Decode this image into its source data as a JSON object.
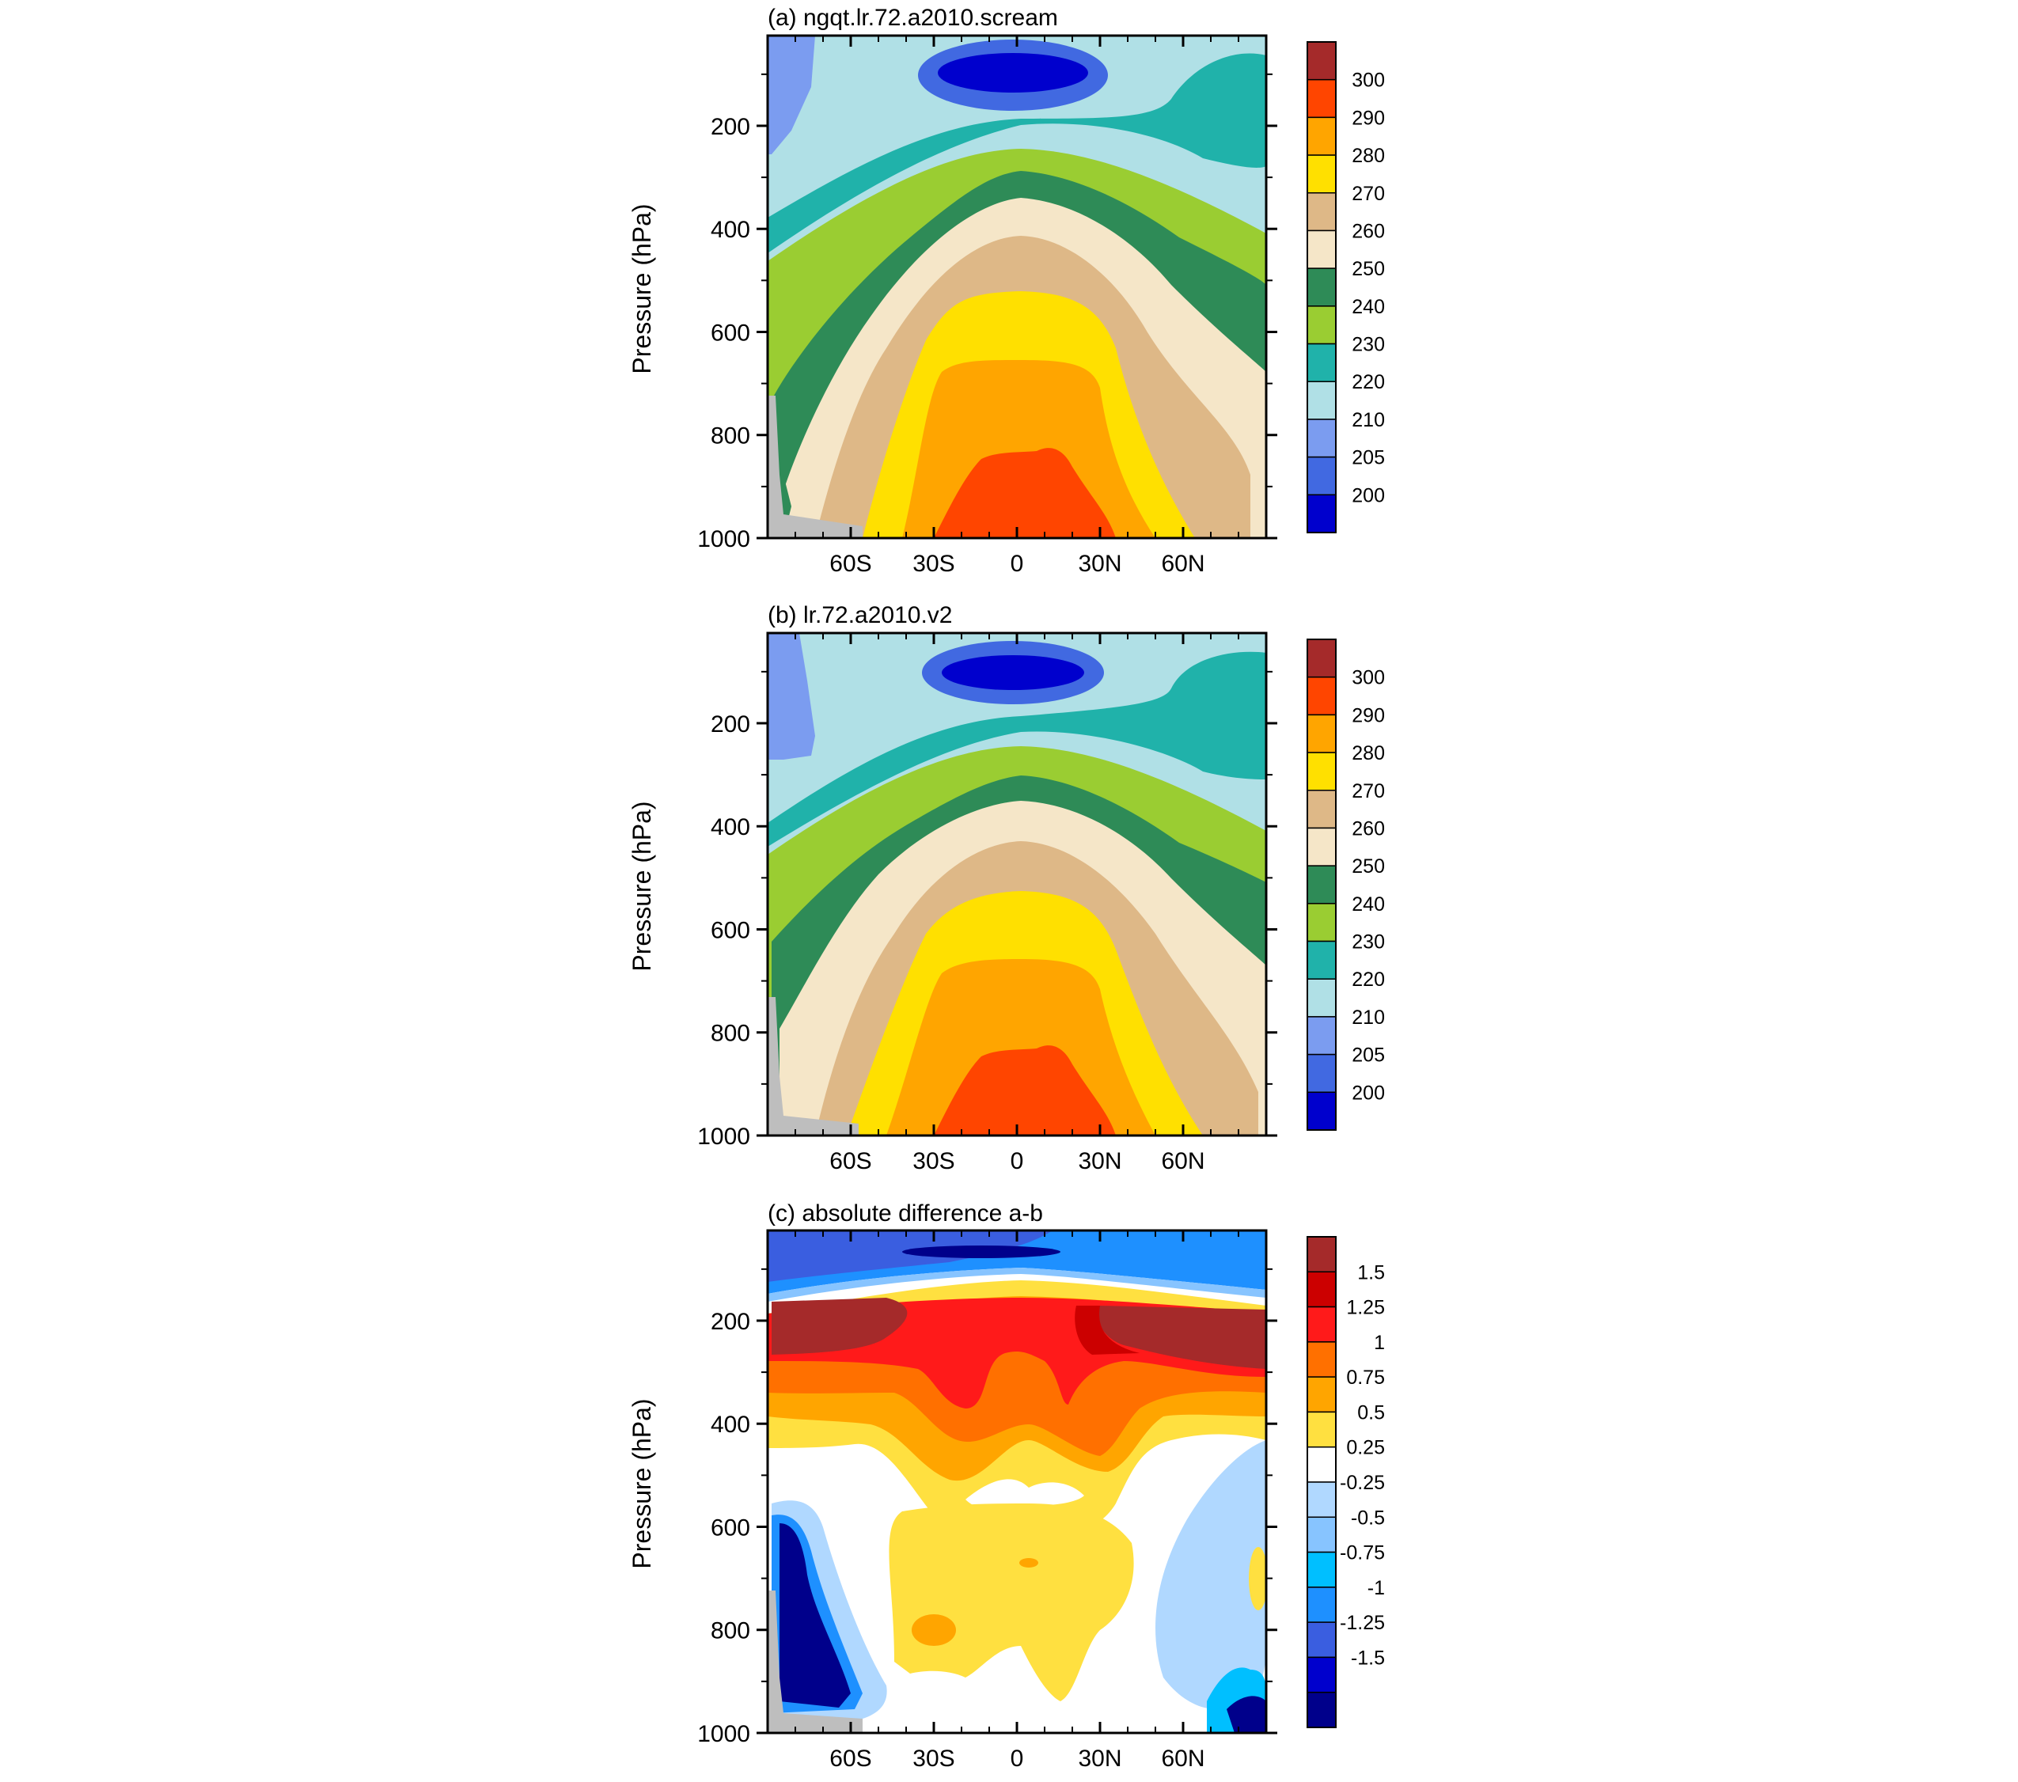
{
  "chart_data": [
    {
      "type": "heatmap",
      "subtype": "filled-contour",
      "panel": "(a)",
      "title": "(a) ngqt.lr.72.a2010.scream",
      "ylabel": "Pressure (hPa)",
      "xlabel": "",
      "x_ticks": [
        "60S",
        "30S",
        "0",
        "30N",
        "60N"
      ],
      "x_tick_values": [
        -60,
        -30,
        0,
        30,
        60
      ],
      "xlim": [
        -90,
        90
      ],
      "y_ticks": [
        "200",
        "400",
        "600",
        "800",
        "1000"
      ],
      "y_tick_values": [
        200,
        400,
        600,
        800,
        1000
      ],
      "ylim": [
        1000,
        25
      ],
      "colorbar_labels": [
        "300",
        "290",
        "280",
        "270",
        "260",
        "250",
        "240",
        "230",
        "220",
        "210",
        "205",
        "200"
      ],
      "colorbar_levels": [
        300,
        290,
        280,
        270,
        260,
        250,
        240,
        230,
        220,
        210,
        205,
        200
      ],
      "colorbar_colors": [
        "#a52a2a",
        "#ff4500",
        "#ffa500",
        "#ffe000",
        "#deb887",
        "#f5e6c8",
        "#2e8b57",
        "#9acd32",
        "#20b2aa",
        "#b0e0e6",
        "#7b9cf0",
        "#4169e1",
        "#0000cd"
      ],
      "missing_color": "#bebebe"
    },
    {
      "type": "heatmap",
      "subtype": "filled-contour",
      "panel": "(b)",
      "title": "(b) lr.72.a2010.v2",
      "ylabel": "Pressure (hPa)",
      "xlabel": "",
      "x_ticks": [
        "60S",
        "30S",
        "0",
        "30N",
        "60N"
      ],
      "x_tick_values": [
        -60,
        -30,
        0,
        30,
        60
      ],
      "xlim": [
        -90,
        90
      ],
      "y_ticks": [
        "200",
        "400",
        "600",
        "800",
        "1000"
      ],
      "y_tick_values": [
        200,
        400,
        600,
        800,
        1000
      ],
      "ylim": [
        1000,
        25
      ],
      "colorbar_labels": [
        "300",
        "290",
        "280",
        "270",
        "260",
        "250",
        "240",
        "230",
        "220",
        "210",
        "205",
        "200"
      ],
      "colorbar_levels": [
        300,
        290,
        280,
        270,
        260,
        250,
        240,
        230,
        220,
        210,
        205,
        200
      ],
      "colorbar_colors": [
        "#a52a2a",
        "#ff4500",
        "#ffa500",
        "#ffe000",
        "#deb887",
        "#f5e6c8",
        "#2e8b57",
        "#9acd32",
        "#20b2aa",
        "#b0e0e6",
        "#7b9cf0",
        "#4169e1",
        "#0000cd"
      ],
      "missing_color": "#bebebe"
    },
    {
      "type": "heatmap",
      "subtype": "filled-contour",
      "panel": "(c)",
      "title": "(c) absolute difference a-b",
      "ylabel": "Pressure (hPa)",
      "xlabel": "",
      "x_ticks": [
        "60S",
        "30S",
        "0",
        "30N",
        "60N"
      ],
      "x_tick_values": [
        -60,
        -30,
        0,
        30,
        60
      ],
      "xlim": [
        -90,
        90
      ],
      "y_ticks": [
        "200",
        "400",
        "600",
        "800",
        "1000"
      ],
      "y_tick_values": [
        200,
        400,
        600,
        800,
        1000
      ],
      "ylim": [
        1000,
        25
      ],
      "colorbar_labels": [
        "1.5",
        "1.25",
        "1",
        "0.75",
        "0.5",
        "0.25",
        "-0.25",
        "-0.5",
        "-0.75",
        "-1",
        "-1.25",
        "-1.5"
      ],
      "colorbar_levels": [
        1.5,
        1.25,
        1,
        0.75,
        0.5,
        0.25,
        -0.25,
        -0.5,
        -0.75,
        -1,
        -1.25,
        -1.5
      ],
      "colorbar_colors": [
        "#a52a2a",
        "#cc0000",
        "#ff1a1a",
        "#ff7000",
        "#ffa500",
        "#ffe040",
        "#ffffff",
        "#b0d8ff",
        "#87c4ff",
        "#00bfff",
        "#1e90ff",
        "#3a5ee0",
        "#0000cd",
        "#00008b"
      ],
      "missing_color": "#bebebe"
    }
  ]
}
